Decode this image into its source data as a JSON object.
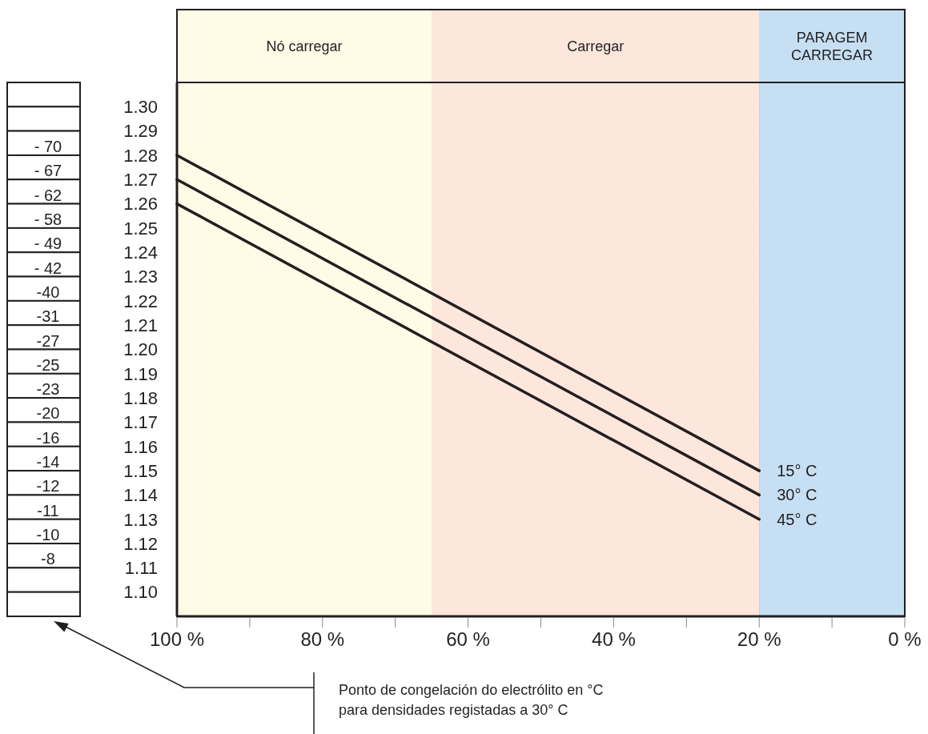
{
  "chart_data": [
    {
      "type": "line",
      "xlim": [
        100,
        0
      ],
      "xticks": [
        {
          "value": 100,
          "label": "100 %"
        },
        {
          "value": 90,
          "label": null
        },
        {
          "value": 80,
          "label": "80 %"
        },
        {
          "value": 70,
          "label": null
        },
        {
          "value": 60,
          "label": "60 %"
        },
        {
          "value": 50,
          "label": null
        },
        {
          "value": 40,
          "label": "40 %"
        },
        {
          "value": 30,
          "label": null
        },
        {
          "value": 20,
          "label": "20 %"
        },
        {
          "value": 10,
          "label": null
        },
        {
          "value": 0,
          "label": "0 %"
        }
      ],
      "ylim": [
        1.09,
        1.31
      ],
      "yticks": [
        {
          "value": 1.1,
          "label": "1.10"
        },
        {
          "value": 1.11,
          "label": "1.11"
        },
        {
          "value": 1.12,
          "label": "1.12"
        },
        {
          "value": 1.13,
          "label": "1.13"
        },
        {
          "value": 1.14,
          "label": "1.14"
        },
        {
          "value": 1.15,
          "label": "1.15"
        },
        {
          "value": 1.16,
          "label": "1.16"
        },
        {
          "value": 1.17,
          "label": "1.17"
        },
        {
          "value": 1.18,
          "label": "1.18"
        },
        {
          "value": 1.19,
          "label": "1.19"
        },
        {
          "value": 1.2,
          "label": "1.20"
        },
        {
          "value": 1.21,
          "label": "1.21"
        },
        {
          "value": 1.22,
          "label": "1.22"
        },
        {
          "value": 1.23,
          "label": "1.23"
        },
        {
          "value": 1.24,
          "label": "1.24"
        },
        {
          "value": 1.25,
          "label": "1.25"
        },
        {
          "value": 1.26,
          "label": "1.26"
        },
        {
          "value": 1.27,
          "label": "1.27"
        },
        {
          "value": 1.28,
          "label": "1.28"
        },
        {
          "value": 1.29,
          "label": "1.29"
        },
        {
          "value": 1.3,
          "label": "1.30"
        }
      ],
      "x": [
        100,
        20
      ],
      "series": [
        {
          "name": "15° C",
          "color": "#231f20",
          "values": [
            1.28,
            1.15
          ]
        },
        {
          "name": "30° C",
          "color": "#231f20",
          "values": [
            1.27,
            1.14
          ]
        },
        {
          "name": "45° C",
          "color": "#231f20",
          "values": [
            1.26,
            1.13
          ]
        }
      ],
      "bands": [
        {
          "axis": "x",
          "from": 100,
          "to": 65,
          "label": "Nó carregar",
          "color": "#fefbe6"
        },
        {
          "axis": "x",
          "from": 65,
          "to": 20,
          "label": "Carregar",
          "color": "#fde6dc"
        },
        {
          "axis": "x",
          "from": 20,
          "to": 0,
          "label": "PARAGEM CARREGAR",
          "color": "#c6dff3"
        }
      ],
      "grid": true
    },
    {
      "type": "other",
      "categories": [
        null,
        null,
        "- 70",
        "- 67",
        "- 62",
        "- 58",
        "- 49",
        "- 42",
        "-40",
        "-31",
        "-27",
        "-25",
        "-23",
        "-20",
        "-16",
        "-14",
        "-12",
        "-11",
        "-10",
        "-8",
        null,
        null
      ],
      "annotations": [
        "Ponto de congelación do electrólito en °C\npara densidades registadas a 30° C"
      ]
    }
  ]
}
